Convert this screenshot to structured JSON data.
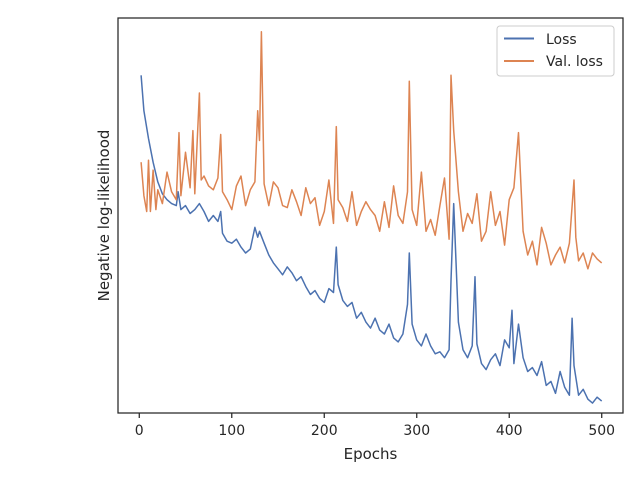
{
  "chart_data": {
    "type": "line",
    "xlabel": "Epochs",
    "ylabel": "Negative log-likelihood",
    "xlim": [
      -23,
      523
    ],
    "xticks": [
      0,
      100,
      200,
      300,
      400,
      500
    ],
    "ylim": [
      -1.0,
      1.0
    ],
    "yticks_shown": false,
    "grid": false,
    "legend_position": "top-right",
    "series": [
      {
        "name": "Loss",
        "color": "#4c72b0",
        "x": [
          2,
          5,
          10,
          15,
          20,
          25,
          30,
          35,
          40,
          42,
          45,
          50,
          55,
          60,
          65,
          70,
          75,
          80,
          85,
          88,
          90,
          95,
          100,
          105,
          110,
          115,
          120,
          125,
          128,
          130,
          135,
          140,
          145,
          150,
          155,
          160,
          165,
          170,
          175,
          180,
          185,
          190,
          195,
          200,
          205,
          210,
          213,
          215,
          220,
          225,
          230,
          235,
          240,
          245,
          250,
          255,
          260,
          265,
          270,
          275,
          280,
          285,
          290,
          292,
          295,
          300,
          305,
          310,
          315,
          320,
          325,
          330,
          335,
          337,
          340,
          345,
          350,
          355,
          360,
          363,
          365,
          370,
          375,
          380,
          385,
          390,
          395,
          400,
          403,
          405,
          410,
          415,
          420,
          425,
          430,
          435,
          440,
          445,
          450,
          455,
          460,
          465,
          468,
          470,
          475,
          480,
          485,
          490,
          495,
          500
        ],
        "values": [
          0.71,
          0.53,
          0.39,
          0.27,
          0.17,
          0.11,
          0.08,
          0.06,
          0.05,
          0.12,
          0.03,
          0.05,
          0.01,
          0.03,
          0.06,
          0.02,
          -0.03,
          0.0,
          -0.03,
          0.02,
          -0.09,
          -0.13,
          -0.14,
          -0.12,
          -0.16,
          -0.19,
          -0.17,
          -0.06,
          -0.11,
          -0.08,
          -0.14,
          -0.2,
          -0.24,
          -0.27,
          -0.3,
          -0.26,
          -0.29,
          -0.33,
          -0.31,
          -0.36,
          -0.4,
          -0.38,
          -0.42,
          -0.44,
          -0.37,
          -0.39,
          -0.16,
          -0.35,
          -0.43,
          -0.46,
          -0.44,
          -0.52,
          -0.49,
          -0.54,
          -0.57,
          -0.52,
          -0.58,
          -0.6,
          -0.55,
          -0.62,
          -0.64,
          -0.6,
          -0.45,
          -0.19,
          -0.55,
          -0.63,
          -0.66,
          -0.6,
          -0.66,
          -0.7,
          -0.69,
          -0.72,
          -0.68,
          -0.33,
          0.06,
          -0.54,
          -0.68,
          -0.72,
          -0.66,
          -0.31,
          -0.65,
          -0.75,
          -0.78,
          -0.73,
          -0.7,
          -0.76,
          -0.63,
          -0.67,
          -0.48,
          -0.75,
          -0.55,
          -0.72,
          -0.79,
          -0.77,
          -0.81,
          -0.74,
          -0.86,
          -0.84,
          -0.9,
          -0.79,
          -0.87,
          -0.91,
          -0.52,
          -0.76,
          -0.91,
          -0.88,
          -0.93,
          -0.95,
          -0.92,
          -0.94
        ]
      },
      {
        "name": "Val. loss",
        "color": "#dd8452",
        "x": [
          2,
          5,
          8,
          10,
          12,
          15,
          18,
          20,
          25,
          30,
          35,
          40,
          43,
          45,
          50,
          55,
          58,
          60,
          65,
          67,
          70,
          75,
          80,
          85,
          88,
          90,
          95,
          100,
          105,
          110,
          115,
          120,
          125,
          128,
          130,
          132,
          135,
          140,
          145,
          150,
          155,
          160,
          165,
          170,
          175,
          180,
          185,
          190,
          195,
          200,
          205,
          210,
          213,
          215,
          220,
          225,
          230,
          235,
          240,
          245,
          250,
          255,
          260,
          265,
          270,
          275,
          280,
          285,
          290,
          292,
          295,
          300,
          305,
          310,
          315,
          320,
          325,
          330,
          335,
          337,
          340,
          345,
          350,
          355,
          360,
          365,
          370,
          375,
          380,
          385,
          390,
          395,
          400,
          405,
          410,
          415,
          420,
          425,
          430,
          435,
          440,
          445,
          450,
          455,
          460,
          465,
          470,
          472,
          475,
          480,
          485,
          490,
          495,
          500
        ],
        "values": [
          0.27,
          0.1,
          0.02,
          0.28,
          0.02,
          0.23,
          0.03,
          0.13,
          0.06,
          0.22,
          0.12,
          0.08,
          0.42,
          0.1,
          0.32,
          0.14,
          0.43,
          0.11,
          0.62,
          0.18,
          0.2,
          0.15,
          0.13,
          0.19,
          0.41,
          0.12,
          0.08,
          0.03,
          0.15,
          0.2,
          0.05,
          0.13,
          0.17,
          0.53,
          0.38,
          0.93,
          0.16,
          0.05,
          0.17,
          0.14,
          0.05,
          0.04,
          0.13,
          0.07,
          0.0,
          0.14,
          0.06,
          0.09,
          -0.05,
          0.02,
          0.18,
          -0.04,
          0.45,
          0.08,
          0.04,
          -0.03,
          0.12,
          -0.05,
          0.02,
          0.07,
          0.03,
          0.0,
          -0.08,
          0.07,
          -0.06,
          0.15,
          0.0,
          -0.04,
          0.12,
          0.68,
          0.03,
          -0.05,
          0.22,
          -0.08,
          -0.02,
          -0.1,
          0.05,
          0.19,
          -0.12,
          0.71,
          0.43,
          0.12,
          -0.08,
          0.01,
          -0.04,
          0.11,
          -0.13,
          -0.08,
          0.12,
          -0.05,
          0.02,
          -0.15,
          0.08,
          0.14,
          0.42,
          -0.08,
          -0.2,
          -0.13,
          -0.25,
          -0.06,
          -0.14,
          -0.25,
          -0.2,
          -0.16,
          -0.24,
          -0.14,
          0.18,
          -0.11,
          -0.23,
          -0.19,
          -0.27,
          -0.19,
          -0.22,
          -0.24
        ]
      }
    ]
  }
}
